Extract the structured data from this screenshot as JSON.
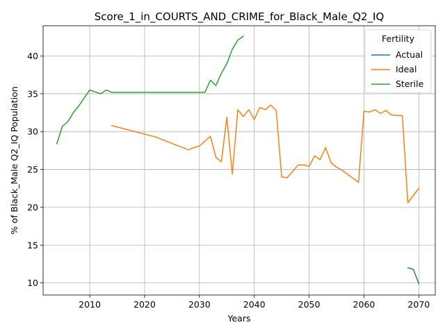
{
  "chart_data": {
    "type": "line",
    "title": "Score_1_in_COURTS_AND_CRIME_for_Black_Male_Q2_IQ",
    "xlabel": "Years",
    "ylabel": "% of Black_Male Q2_IQ Population",
    "xlim": [
      2001.5,
      2073.0
    ],
    "ylim": [
      8.4,
      44.0
    ],
    "xticks": [
      2010,
      2020,
      2030,
      2040,
      2050,
      2060,
      2070
    ],
    "yticks": [
      10,
      15,
      20,
      25,
      30,
      35,
      40
    ],
    "grid": true,
    "legend": {
      "title": "Fertility",
      "placement": "top-right"
    },
    "series": [
      {
        "name": "Actual",
        "color": "#1f77b4",
        "points": [
          [
            2068,
            12.0
          ],
          [
            2069,
            11.8
          ],
          [
            2070,
            9.9
          ]
        ]
      },
      {
        "name": "Ideal",
        "color": "#ff7f0e",
        "points": [
          [
            2014,
            30.8
          ],
          [
            2022,
            29.3
          ],
          [
            2028,
            27.6
          ],
          [
            2029,
            27.9
          ],
          [
            2030,
            28.1
          ],
          [
            2032,
            29.4
          ],
          [
            2033,
            26.6
          ],
          [
            2034,
            26.0
          ],
          [
            2035,
            31.9
          ],
          [
            2036,
            24.4
          ],
          [
            2037,
            32.9
          ],
          [
            2038,
            32.0
          ],
          [
            2039,
            32.9
          ],
          [
            2040,
            31.6
          ],
          [
            2041,
            33.2
          ],
          [
            2042,
            32.9
          ],
          [
            2043,
            33.5
          ],
          [
            2044,
            32.8
          ],
          [
            2045,
            24.0
          ],
          [
            2046,
            23.9
          ],
          [
            2048,
            25.6
          ],
          [
            2049,
            25.6
          ],
          [
            2050,
            25.4
          ],
          [
            2051,
            26.8
          ],
          [
            2052,
            26.3
          ],
          [
            2053,
            27.9
          ],
          [
            2054,
            25.9
          ],
          [
            2055,
            25.3
          ],
          [
            2056,
            24.9
          ],
          [
            2059,
            23.3
          ],
          [
            2060,
            32.7
          ],
          [
            2061,
            32.6
          ],
          [
            2062,
            32.9
          ],
          [
            2063,
            32.4
          ],
          [
            2064,
            32.8
          ],
          [
            2065,
            32.2
          ],
          [
            2067,
            32.1
          ],
          [
            2068,
            20.6
          ],
          [
            2070,
            22.5
          ]
        ]
      },
      {
        "name": "Sterile",
        "color": "#2ca02c",
        "points": [
          [
            2004,
            28.4
          ],
          [
            2005,
            30.7
          ],
          [
            2006,
            31.3
          ],
          [
            2007,
            32.5
          ],
          [
            2008,
            33.4
          ],
          [
            2010,
            35.5
          ],
          [
            2012,
            35.0
          ],
          [
            2013,
            35.5
          ],
          [
            2014,
            35.2
          ],
          [
            2031,
            35.2
          ],
          [
            2032,
            36.8
          ],
          [
            2033,
            36.1
          ],
          [
            2034,
            37.7
          ],
          [
            2035,
            39.0
          ],
          [
            2036,
            40.9
          ],
          [
            2037,
            42.1
          ],
          [
            2038,
            42.6
          ]
        ]
      }
    ]
  }
}
